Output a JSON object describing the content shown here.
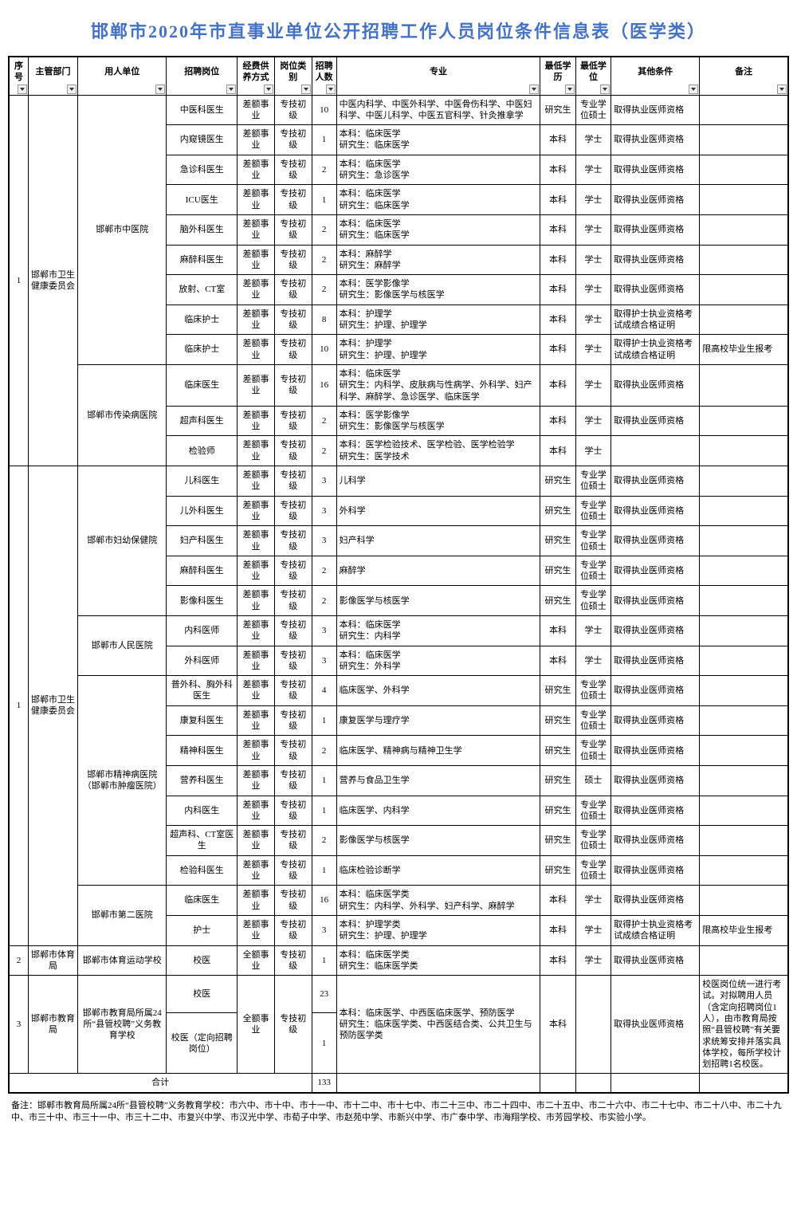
{
  "page_title": "邯郸市2020年市直事业单位公开招聘工作人员岗位条件信息表（医学类）",
  "title_color": "#4472c4",
  "columns": [
    "序号",
    "主管部门",
    "用人单位",
    "招聘岗位",
    "经费供养方式",
    "岗位类别",
    "招聘人数",
    "专业",
    "最低学历",
    "最低学位",
    "其他条件",
    "备注"
  ],
  "total_label": "合计",
  "total_value": "133",
  "footnote": "备注：邯郸市教育局所属24所“县管校聘”义务教育学校：市六中、市十中、市十一中、市十二中、市十七中、市二十三中、市二十四中、市二十五中、市二十六中、市二十七中、市二十八中、市二十九中、市三十中、市三十一中、市三十二中、市复兴中学、市汉光中学、市荀子中学、市赵苑中学、市新兴中学、市广泰中学、市海翔学校、市芳园学校、市实验小学。",
  "rows": [
    {
      "seq": "1",
      "dept": "邯郸市卫生健康委员会",
      "unit": "邯郸市中医院",
      "pos": "中医科医生",
      "fund": "差额事业",
      "cat": "专技初级",
      "num": "10",
      "major": "中医内科学、中医外科学、中医骨伤科学、中医妇科学、中医儿科学、中医五官科学、针灸推拿学",
      "edu": "研究生",
      "deg": "专业学位硕士",
      "other": "取得执业医师资格",
      "note": ""
    },
    {
      "pos": "内窥镜医生",
      "fund": "差额事业",
      "cat": "专技初级",
      "num": "1",
      "major": "本科：临床医学\n研究生：临床医学",
      "edu": "本科",
      "deg": "学士",
      "other": "取得执业医师资格",
      "note": ""
    },
    {
      "pos": "急诊科医生",
      "fund": "差额事业",
      "cat": "专技初级",
      "num": "2",
      "major": "本科：临床医学\n研究生：急诊医学",
      "edu": "本科",
      "deg": "学士",
      "other": "取得执业医师资格",
      "note": ""
    },
    {
      "pos": "ICU医生",
      "fund": "差额事业",
      "cat": "专技初级",
      "num": "1",
      "major": "本科：临床医学\n研究生：临床医学",
      "edu": "本科",
      "deg": "学士",
      "other": "取得执业医师资格",
      "note": ""
    },
    {
      "pos": "脑外科医生",
      "fund": "差额事业",
      "cat": "专技初级",
      "num": "2",
      "major": "本科：临床医学\n研究生：临床医学",
      "edu": "本科",
      "deg": "学士",
      "other": "取得执业医师资格",
      "note": ""
    },
    {
      "pos": "麻醉科医生",
      "fund": "差额事业",
      "cat": "专技初级",
      "num": "2",
      "major": "本科：麻醉学\n研究生：麻醉学",
      "edu": "本科",
      "deg": "学士",
      "other": "取得执业医师资格",
      "note": ""
    },
    {
      "pos": "放射、CT室",
      "fund": "差额事业",
      "cat": "专技初级",
      "num": "2",
      "major": "本科：医学影像学\n研究生：影像医学与核医学",
      "edu": "本科",
      "deg": "学士",
      "other": "取得执业医师资格",
      "note": ""
    },
    {
      "pos": "临床护士",
      "fund": "差额事业",
      "cat": "专技初级",
      "num": "8",
      "major": "本科：护理学\n研究生：护理、护理学",
      "edu": "本科",
      "deg": "学士",
      "other": "取得护士执业资格考试成绩合格证明",
      "note": ""
    },
    {
      "pos": "临床护士",
      "fund": "差额事业",
      "cat": "专技初级",
      "num": "10",
      "major": "本科：护理学\n研究生：护理、护理学",
      "edu": "本科",
      "deg": "学士",
      "other": "取得护士执业资格考试成绩合格证明",
      "note": "限高校毕业生报考"
    },
    {
      "unit": "邯郸市传染病医院",
      "pos": "临床医生",
      "fund": "差额事业",
      "cat": "专技初级",
      "num": "16",
      "major": "本科：临床医学\n研究生：内科学、皮肤病与性病学、外科学、妇产科学、麻醉学、急诊医学、临床医学",
      "edu": "本科",
      "deg": "学士",
      "other": "取得执业医师资格",
      "note": ""
    },
    {
      "pos": "超声科医生",
      "fund": "差额事业",
      "cat": "专技初级",
      "num": "2",
      "major": "本科：医学影像学\n研究生：影像医学与核医学",
      "edu": "本科",
      "deg": "学士",
      "other": "取得执业医师资格",
      "note": ""
    },
    {
      "pos": "检验师",
      "fund": "差额事业",
      "cat": "专技初级",
      "num": "2",
      "major": "本科：医学检验技术、医学检验、医学检验学\n研究生：医学技术",
      "edu": "本科",
      "deg": "学士",
      "other": "",
      "note": ""
    },
    {
      "seq": "1",
      "dept": "邯郸市卫生健康委员会",
      "unit": "邯郸市妇幼保健院",
      "pos": "儿科医生",
      "fund": "差额事业",
      "cat": "专技初级",
      "num": "3",
      "major": "儿科学",
      "edu": "研究生",
      "deg": "专业学位硕士",
      "other": "取得执业医师资格",
      "note": ""
    },
    {
      "pos": "儿外科医生",
      "fund": "差额事业",
      "cat": "专技初级",
      "num": "3",
      "major": "外科学",
      "edu": "研究生",
      "deg": "专业学位硕士",
      "other": "取得执业医师资格",
      "note": ""
    },
    {
      "pos": "妇产科医生",
      "fund": "差额事业",
      "cat": "专技初级",
      "num": "3",
      "major": "妇产科学",
      "edu": "研究生",
      "deg": "专业学位硕士",
      "other": "取得执业医师资格",
      "note": ""
    },
    {
      "pos": "麻醉科医生",
      "fund": "差额事业",
      "cat": "专技初级",
      "num": "2",
      "major": "麻醉学",
      "edu": "研究生",
      "deg": "专业学位硕士",
      "other": "取得执业医师资格",
      "note": ""
    },
    {
      "pos": "影像科医生",
      "fund": "差额事业",
      "cat": "专技初级",
      "num": "2",
      "major": "影像医学与核医学",
      "edu": "研究生",
      "deg": "专业学位硕士",
      "other": "取得执业医师资格",
      "note": ""
    },
    {
      "unit": "邯郸市人民医院",
      "pos": "内科医师",
      "fund": "差额事业",
      "cat": "专技初级",
      "num": "3",
      "major": "本科：临床医学\n研究生：内科学",
      "edu": "本科",
      "deg": "学士",
      "other": "取得执业医师资格",
      "note": ""
    },
    {
      "pos": "外科医师",
      "fund": "差额事业",
      "cat": "专技初级",
      "num": "3",
      "major": "本科：临床医学\n研究生：外科学",
      "edu": "本科",
      "deg": "学士",
      "other": "取得执业医师资格",
      "note": ""
    },
    {
      "unit": "邯郸市精神病医院（邯郸市肿瘤医院）",
      "pos": "普外科、胸外科医生",
      "fund": "差额事业",
      "cat": "专技初级",
      "num": "4",
      "major": "临床医学、外科学",
      "edu": "研究生",
      "deg": "专业学位硕士",
      "other": "取得执业医师资格",
      "note": ""
    },
    {
      "pos": "康复科医生",
      "fund": "差额事业",
      "cat": "专技初级",
      "num": "1",
      "major": "康复医学与理疗学",
      "edu": "研究生",
      "deg": "专业学位硕士",
      "other": "取得执业医师资格",
      "note": ""
    },
    {
      "pos": "精神科医生",
      "fund": "差额事业",
      "cat": "专技初级",
      "num": "2",
      "major": "临床医学、精神病与精神卫生学",
      "edu": "研究生",
      "deg": "专业学位硕士",
      "other": "取得执业医师资格",
      "note": ""
    },
    {
      "pos": "营养科医生",
      "fund": "差额事业",
      "cat": "专技初级",
      "num": "1",
      "major": "营养与食品卫生学",
      "edu": "研究生",
      "deg": "硕士",
      "other": "取得执业医师资格",
      "note": ""
    },
    {
      "pos": "内科医生",
      "fund": "差额事业",
      "cat": "专技初级",
      "num": "1",
      "major": "临床医学、内科学",
      "edu": "研究生",
      "deg": "专业学位硕士",
      "other": "取得执业医师资格",
      "note": ""
    },
    {
      "pos": "超声科、CT室医生",
      "fund": "差额事业",
      "cat": "专技初级",
      "num": "2",
      "major": "影像医学与核医学",
      "edu": "研究生",
      "deg": "专业学位硕士",
      "other": "取得执业医师资格",
      "note": ""
    },
    {
      "pos": "检验科医生",
      "fund": "差额事业",
      "cat": "专技初级",
      "num": "1",
      "major": "临床检验诊断学",
      "edu": "研究生",
      "deg": "专业学位硕士",
      "other": "取得执业医师资格",
      "note": ""
    },
    {
      "unit": "邯郸市第二医院",
      "pos": "临床医生",
      "fund": "差额事业",
      "cat": "专技初级",
      "num": "16",
      "major": "本科：临床医学类\n研究生：内科学、外科学、妇产科学、麻醉学",
      "edu": "本科",
      "deg": "学士",
      "other": "取得执业医师资格",
      "note": ""
    },
    {
      "pos": "护士",
      "fund": "差额事业",
      "cat": "专技初级",
      "num": "3",
      "major": "本科：护理学类\n研究生：护理、护理学",
      "edu": "本科",
      "deg": "学士",
      "other": "取得护士执业资格考试成绩合格证明",
      "note": "限高校毕业生报考"
    },
    {
      "seq": "2",
      "dept": "邯郸市体育局",
      "unit": "邯郸市体育运动学校",
      "pos": "校医",
      "fund": "全额事业",
      "cat": "专技初级",
      "num": "1",
      "major": "本科：临床医学类\n研究生：临床医学类",
      "edu": "本科",
      "deg": "学士",
      "other": "取得执业医师资格",
      "note": ""
    },
    {
      "seq": "3",
      "dept": "邯郸市教育局",
      "unit": "邯郸市教育局所属24所“县管校聘”义务教育学校",
      "pos": "校医",
      "fund": "全额事业",
      "cat": "专技初级",
      "num": "23",
      "major": "本科：临床医学、中西医临床医学、预防医学\n研究生：临床医学类、中西医结合类、公共卫生与预防医学类",
      "edu": "本科",
      "deg": "",
      "other": "取得执业医师资格",
      "note": "校医岗位统一进行考试。对拟聘用人员（含定向招聘岗位1人），由市教育局按照“县管校聘”有关要求统筹安排并落实具体学校，每所学校计划招聘1名校医。"
    },
    {
      "pos": "校医（定向招聘岗位）",
      "num": "1"
    }
  ]
}
